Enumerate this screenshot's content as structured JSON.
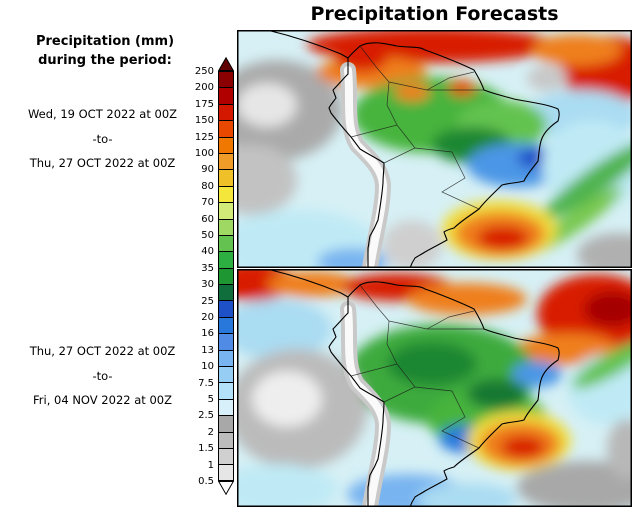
{
  "title": "Precipitation Forecasts",
  "legend": {
    "heading_line1": "Precipitation (mm)",
    "heading_line2": "during the period:"
  },
  "panels": [
    {
      "date_from": "Wed, 19 OCT 2022 at 00Z",
      "separator": "-to-",
      "date_to": "Thu, 27 OCT 2022 at 00Z"
    },
    {
      "date_from": "Thu, 27 OCT 2022 at 00Z",
      "separator": "-to-",
      "date_to": "Fri, 04 NOV 2022 at 00Z"
    }
  ],
  "colorbar": {
    "tick_labels": [
      "250",
      "200",
      "175",
      "150",
      "125",
      "100",
      "90",
      "80",
      "70",
      "60",
      "50",
      "40",
      "35",
      "30",
      "25",
      "20",
      "16",
      "13",
      "10",
      "7.5",
      "5",
      "2.5",
      "2",
      "1.5",
      "1",
      "0.5"
    ],
    "segment_colors_top_to_bottom": [
      "#8b0000",
      "#b00000",
      "#d41800",
      "#e84800",
      "#f07800",
      "#f09c28",
      "#f0c028",
      "#f5e63c",
      "#d2eb78",
      "#a0d864",
      "#64c350",
      "#2daf41",
      "#1e9632",
      "#0f6e3c",
      "#1e50c8",
      "#2878dc",
      "#508ce6",
      "#78b4f0",
      "#96cdf5",
      "#b4e1fa",
      "#d7f0fa",
      "#a8a8a8",
      "#bcbcbc",
      "#d0d0d0",
      "#e6e6e6"
    ],
    "above_max_color": "#600000",
    "below_min_color": "#ffffff"
  }
}
